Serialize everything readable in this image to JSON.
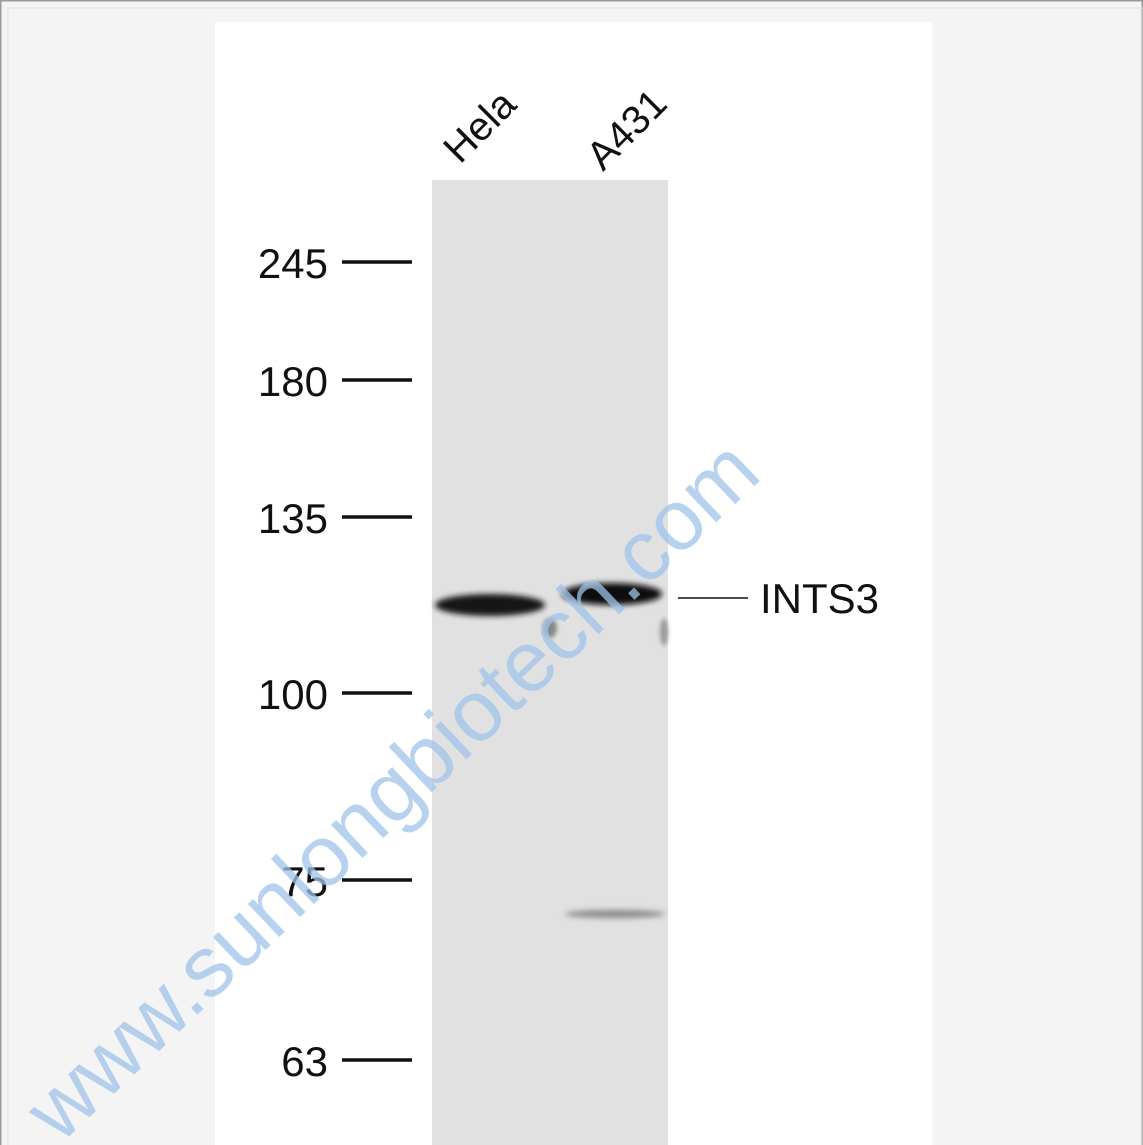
{
  "figure": {
    "lanes": [
      "Hela",
      "A431"
    ],
    "markers": [
      "245",
      "180",
      "135",
      "100",
      "75",
      "63"
    ],
    "band_label": "INTS3",
    "watermark": "www.sunlongbiotech.com"
  }
}
